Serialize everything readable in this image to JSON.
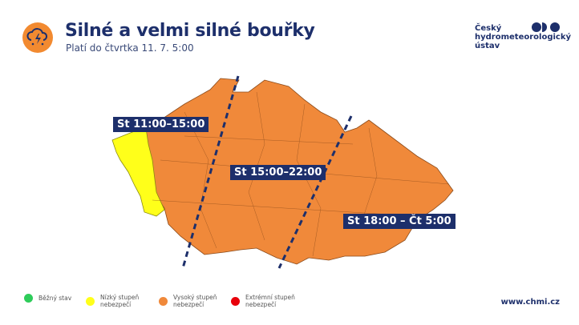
{
  "header": {
    "title": "Silné a velmi silné bouřky",
    "subtitle": "Platí do čtvrtka 11. 7. 5:00",
    "icon": "thunderstorm-icon"
  },
  "logo": {
    "line1": "Český",
    "line2": "hydrometeorologický",
    "line3": "ústav"
  },
  "map": {
    "labels": [
      "St 11:00–15:00",
      "St 15:00–22:00",
      "St 18:00 – Čt 5:00"
    ],
    "colors": {
      "orange": "#f0893a",
      "yellow": "#ffff1a",
      "line": "#1d2f6b"
    }
  },
  "legend": [
    {
      "label": "Běžný stav",
      "color": "#2ecc5a"
    },
    {
      "label1": "Nízký stupeň",
      "label2": "nebezpečí",
      "color": "#ffff1a"
    },
    {
      "label1": "Vysoký stupeň",
      "label2": "nebezpečí",
      "color": "#f0893a"
    },
    {
      "label1": "Extrémní stupeň",
      "label2": "nebezpečí",
      "color": "#e8000b"
    }
  ],
  "footer": {
    "url": "www.chmi.cz"
  }
}
